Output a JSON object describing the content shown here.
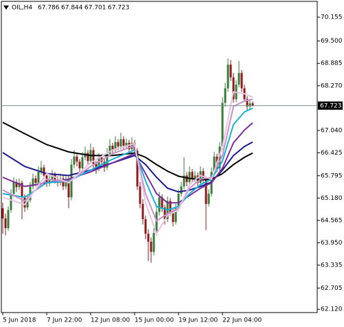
{
  "chart_data": {
    "type": "candlestick",
    "title": "OIL,H4",
    "up_color": "#3a7a3a",
    "down_color": "#8b1a1a",
    "xlim": [
      -0.5,
      114.5
    ],
    "xticks": [
      {
        "value": 0,
        "label": "5 Jun 2018"
      },
      {
        "value": 16,
        "label": "7 Jun 22:00"
      },
      {
        "value": 32,
        "label": "12 Jun 08:00"
      },
      {
        "value": 48,
        "label": "15 Jun 00:00"
      },
      {
        "value": 64,
        "label": "19 Jun 12:00"
      },
      {
        "value": 80,
        "label": "22 Jun 04:00"
      }
    ],
    "ylim": [
      62.03,
      70.59
    ],
    "yticks": [
      70.155,
      {
        "value": 69.5,
        "label": "69.500"
      },
      68.885,
      {
        "value": 68.27,
        "label": "68.270"
      },
      {
        "value": 67.04,
        "label": "67.040"
      },
      66.425,
      65.795,
      {
        "value": 65.18,
        "label": "65.180"
      },
      64.565,
      {
        "value": 63.95,
        "label": "63.950"
      },
      63.335,
      62.705,
      {
        "value": 62.12,
        "label": "62.120"
      }
    ],
    "ohlc": [
      [
        64.9,
        65.05,
        64.2,
        64.62
      ],
      [
        64.62,
        64.75,
        64.15,
        64.35
      ],
      [
        64.35,
        64.95,
        64.28,
        64.85
      ],
      [
        64.85,
        65.42,
        64.78,
        65.3
      ],
      [
        65.3,
        65.75,
        65.22,
        65.62
      ],
      [
        65.62,
        65.7,
        65.35,
        65.48
      ],
      [
        65.48,
        65.72,
        65.4,
        65.6
      ],
      [
        65.6,
        65.66,
        64.6,
        65.2
      ],
      [
        65.2,
        65.28,
        64.8,
        64.92
      ],
      [
        64.92,
        65.25,
        64.85,
        65.12
      ],
      [
        65.12,
        65.62,
        65.05,
        65.5
      ],
      [
        65.5,
        65.85,
        65.42,
        65.72
      ],
      [
        65.72,
        65.8,
        65.5,
        65.6
      ],
      [
        65.6,
        66.05,
        65.52,
        65.9
      ],
      [
        65.9,
        66.2,
        65.82,
        66.02
      ],
      [
        66.02,
        66.1,
        65.7,
        65.8
      ],
      [
        65.8,
        65.88,
        65.48,
        65.58
      ],
      [
        65.58,
        65.82,
        65.5,
        65.7
      ],
      [
        65.7,
        65.95,
        65.62,
        65.82
      ],
      [
        65.82,
        65.9,
        65.58,
        65.68
      ],
      [
        65.68,
        65.78,
        65.5,
        65.6
      ],
      [
        65.6,
        65.85,
        65.52,
        65.72
      ],
      [
        65.72,
        65.8,
        65.4,
        65.5
      ],
      [
        65.5,
        65.82,
        65.42,
        65.7
      ],
      [
        65.7,
        65.78,
        64.9,
        65.2
      ],
      [
        65.2,
        66.25,
        65.12,
        66.1
      ],
      [
        66.1,
        66.5,
        66.0,
        66.32
      ],
      [
        66.32,
        66.42,
        66.05,
        66.18
      ],
      [
        66.18,
        66.25,
        65.88,
        66.0
      ],
      [
        66.0,
        66.45,
        65.92,
        66.3
      ],
      [
        66.3,
        66.6,
        66.22,
        66.42
      ],
      [
        66.42,
        66.5,
        66.1,
        66.2
      ],
      [
        66.2,
        66.68,
        66.12,
        66.5
      ],
      [
        66.5,
        66.58,
        66.0,
        66.12
      ],
      [
        66.12,
        66.2,
        65.85,
        66.0
      ],
      [
        66.0,
        66.42,
        65.92,
        66.3
      ],
      [
        66.3,
        66.38,
        66.08,
        66.18
      ],
      [
        66.18,
        66.25,
        65.9,
        66.02
      ],
      [
        66.02,
        66.55,
        65.95,
        66.4
      ],
      [
        66.4,
        66.8,
        66.32,
        66.62
      ],
      [
        66.62,
        66.7,
        66.4,
        66.5
      ],
      [
        66.5,
        66.88,
        66.42,
        66.72
      ],
      [
        66.72,
        66.8,
        66.5,
        66.6
      ],
      [
        66.6,
        66.98,
        66.52,
        66.8
      ],
      [
        66.8,
        66.88,
        66.52,
        66.62
      ],
      [
        66.62,
        66.82,
        66.55,
        66.7
      ],
      [
        66.7,
        66.78,
        66.42,
        66.52
      ],
      [
        66.52,
        66.85,
        66.45,
        66.7
      ],
      [
        66.7,
        66.78,
        66.4,
        66.48
      ],
      [
        66.48,
        66.55,
        65.4,
        65.5
      ],
      [
        65.5,
        65.62,
        64.9,
        65.02
      ],
      [
        65.02,
        65.15,
        64.45,
        64.6
      ],
      [
        64.6,
        64.7,
        64.05,
        64.2
      ],
      [
        64.2,
        64.32,
        63.45,
        63.98
      ],
      [
        63.98,
        64.1,
        63.4,
        63.7
      ],
      [
        63.7,
        64.35,
        63.6,
        64.22
      ],
      [
        64.22,
        64.95,
        64.15,
        64.8
      ],
      [
        64.8,
        65.35,
        64.7,
        65.2
      ],
      [
        65.2,
        65.28,
        64.8,
        64.92
      ],
      [
        64.92,
        65.0,
        64.45,
        64.6
      ],
      [
        64.6,
        65.22,
        64.52,
        65.1
      ],
      [
        65.1,
        65.18,
        64.7,
        64.8
      ],
      [
        64.8,
        64.9,
        64.4,
        64.52
      ],
      [
        64.52,
        65.02,
        64.45,
        64.9
      ],
      [
        64.9,
        65.42,
        64.82,
        65.3
      ],
      [
        65.3,
        65.62,
        65.22,
        65.5
      ],
      [
        65.5,
        66.3,
        65.42,
        65.8
      ],
      [
        65.8,
        65.9,
        65.5,
        65.62
      ],
      [
        65.62,
        66.05,
        65.55,
        65.9
      ],
      [
        65.9,
        65.98,
        65.6,
        65.7
      ],
      [
        65.7,
        65.92,
        65.62,
        65.8
      ],
      [
        65.8,
        65.88,
        65.5,
        65.6
      ],
      [
        65.6,
        66.05,
        65.52,
        65.92
      ],
      [
        65.92,
        66.0,
        65.6,
        65.7
      ],
      [
        65.7,
        65.78,
        64.3,
        65.02
      ],
      [
        65.02,
        65.42,
        64.95,
        65.3
      ],
      [
        65.3,
        66.02,
        65.22,
        65.9
      ],
      [
        65.9,
        66.45,
        65.82,
        66.32
      ],
      [
        66.32,
        66.4,
        65.9,
        66.0
      ],
      [
        66.0,
        66.72,
        65.92,
        66.6
      ],
      [
        66.6,
        67.95,
        66.52,
        67.8
      ],
      [
        67.8,
        68.35,
        67.7,
        68.2
      ],
      [
        68.2,
        69.02,
        68.1,
        68.85
      ],
      [
        68.85,
        68.98,
        68.4,
        68.5
      ],
      [
        68.5,
        68.62,
        67.8,
        67.9
      ],
      [
        67.9,
        68.42,
        67.82,
        68.3
      ],
      [
        68.3,
        68.95,
        68.22,
        68.62
      ],
      [
        68.62,
        68.7,
        68.1,
        68.2
      ],
      [
        68.2,
        68.3,
        67.82,
        67.9
      ],
      [
        67.9,
        67.98,
        67.6,
        67.7
      ],
      [
        67.7,
        67.88,
        67.62,
        67.786
      ],
      [
        67.786,
        67.844,
        67.701,
        67.723
      ]
    ],
    "series": [
      {
        "color": "#000000",
        "x": [
          0,
          8,
          16,
          24,
          32,
          40,
          48,
          52,
          56,
          60,
          64,
          68,
          72,
          76,
          80,
          84,
          88,
          91
        ],
        "values": [
          67.26,
          66.95,
          66.65,
          66.45,
          66.35,
          66.35,
          66.42,
          66.3,
          66.1,
          65.92,
          65.78,
          65.72,
          65.68,
          65.7,
          65.85,
          66.1,
          66.3,
          66.42
        ]
      },
      {
        "color": "#1a1a8c",
        "x": [
          0,
          8,
          16,
          24,
          32,
          40,
          48,
          52,
          56,
          60,
          64,
          68,
          72,
          76,
          80,
          84,
          88,
          91
        ],
        "values": [
          66.43,
          66.05,
          65.85,
          65.8,
          65.95,
          66.15,
          66.35,
          66.1,
          65.75,
          65.45,
          65.35,
          65.4,
          65.5,
          65.62,
          65.95,
          66.35,
          66.6,
          66.72
        ]
      },
      {
        "color": "#7b2d9b",
        "x": [
          0,
          8,
          16,
          24,
          32,
          40,
          48,
          52,
          56,
          60,
          64,
          68,
          72,
          76,
          80,
          84,
          88,
          91
        ],
        "values": [
          65.75,
          65.5,
          65.6,
          65.7,
          65.9,
          66.15,
          66.4,
          65.85,
          65.3,
          65.05,
          65.05,
          65.25,
          65.45,
          65.6,
          66.0,
          66.7,
          67.05,
          67.25
        ]
      },
      {
        "color": "#1ab0d8",
        "x": [
          0,
          8,
          16,
          24,
          32,
          40,
          48,
          52,
          56,
          60,
          64,
          68,
          72,
          76,
          80,
          84,
          88,
          91
        ],
        "values": [
          65.3,
          65.2,
          65.6,
          65.65,
          65.95,
          66.25,
          66.5,
          65.65,
          64.95,
          64.85,
          64.95,
          65.3,
          65.55,
          65.7,
          66.2,
          67.2,
          67.55,
          67.65
        ]
      },
      {
        "color": "#c890c8",
        "x": [
          0,
          8,
          16,
          24,
          32,
          40,
          48,
          52,
          56,
          60,
          64,
          68,
          72,
          76,
          80,
          84,
          88,
          91
        ],
        "values": [
          65.4,
          65.1,
          65.7,
          65.62,
          66.05,
          66.4,
          66.62,
          65.3,
          64.55,
          64.75,
          64.9,
          65.45,
          65.7,
          65.75,
          66.35,
          67.7,
          67.85,
          67.9
        ]
      },
      {
        "color": "#e6c4e2",
        "x": [
          0,
          8,
          16,
          24,
          32,
          40,
          48,
          52,
          56,
          60,
          64,
          68,
          72,
          76,
          80,
          84,
          88,
          91
        ],
        "values": [
          65.2,
          65.0,
          65.85,
          65.6,
          66.15,
          66.5,
          66.68,
          65.05,
          64.2,
          64.7,
          64.85,
          65.55,
          65.8,
          65.7,
          66.6,
          68.1,
          68.05,
          67.95
        ]
      }
    ]
  }
}
